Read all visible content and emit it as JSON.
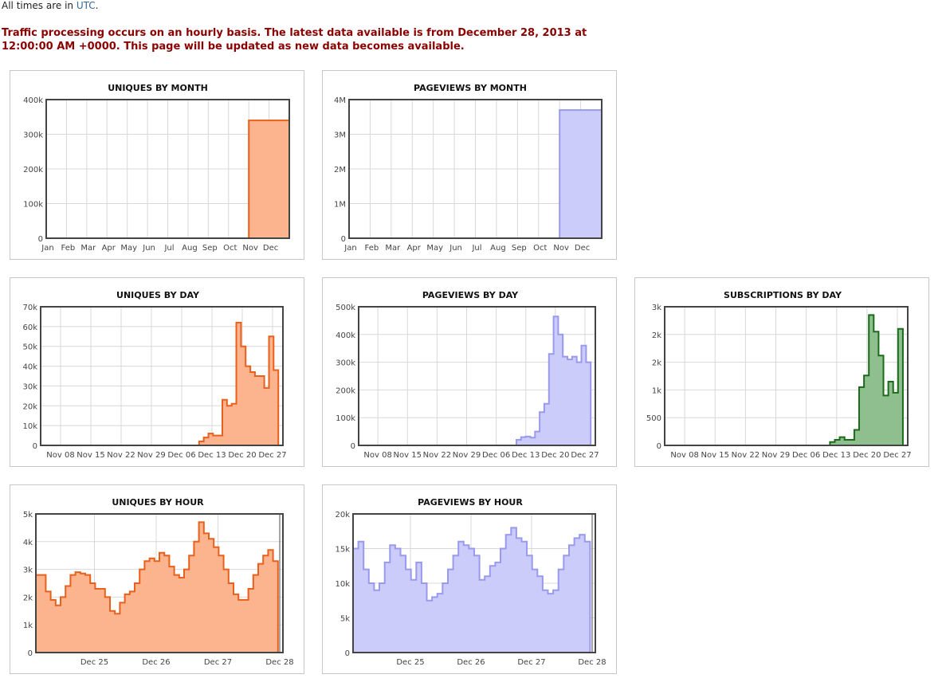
{
  "header": {
    "timezone_prefix": "All times are in ",
    "timezone_link": "UTC",
    "timezone_suffix": ".",
    "notice_line1": "Traffic processing occurs on an hourly basis. The latest data available is from December 28, 2013 at",
    "notice_line2": "12:00:00 AM +0000. This page will be updated as new data becomes available."
  },
  "colors": {
    "uniques_line": "#e8601c",
    "uniques_fill": "#fbb48e",
    "pageviews_line": "#9999ee",
    "pageviews_fill": "#ccccfa",
    "subs_line": "#1a6b1a",
    "subs_fill": "#8fbf8f"
  },
  "chart_data": [
    {
      "id": "uniques_month",
      "type": "area",
      "title": "UNIQUES BY MONTH",
      "color": "uniques",
      "categories": [
        "Jan",
        "Feb",
        "Mar",
        "Apr",
        "May",
        "Jun",
        "Jul",
        "Aug",
        "Sep",
        "Oct",
        "Nov",
        "Dec"
      ],
      "values": [
        0,
        0,
        0,
        0,
        0,
        0,
        0,
        0,
        0,
        0,
        340000,
        340000
      ],
      "ylim": [
        0,
        400000
      ],
      "yticks": [
        "0",
        "100k",
        "200k",
        "300k",
        "400k"
      ]
    },
    {
      "id": "pageviews_month",
      "type": "area",
      "title": "PAGEVIEWS BY MONTH",
      "color": "pageviews",
      "categories": [
        "Jan",
        "Feb",
        "Mar",
        "Apr",
        "May",
        "Jun",
        "Jul",
        "Aug",
        "Sep",
        "Oct",
        "Nov",
        "Dec"
      ],
      "values": [
        0,
        0,
        0,
        0,
        0,
        0,
        0,
        0,
        0,
        0,
        3700000,
        3700000
      ],
      "ylim": [
        0,
        4000000
      ],
      "yticks": [
        "0",
        "1M",
        "2M",
        "3M",
        "4M"
      ]
    },
    {
      "id": "uniques_day",
      "type": "area",
      "title": "UNIQUES BY DAY",
      "color": "uniques",
      "xticks": [
        "Nov 08",
        "Nov 15",
        "Nov 22",
        "Nov 29",
        "Dec 06",
        "Dec 13",
        "Dec 20",
        "Dec 27"
      ],
      "values": [
        0,
        0,
        0,
        0,
        0,
        0,
        0,
        0,
        0,
        0,
        0,
        0,
        0,
        0,
        0,
        0,
        0,
        0,
        0,
        0,
        0,
        0,
        0,
        0,
        0,
        0,
        0,
        0,
        0,
        0,
        0,
        0,
        0,
        0,
        2000,
        4000,
        6000,
        5000,
        5000,
        23000,
        20000,
        21000,
        62000,
        50000,
        40000,
        37000,
        35000,
        35000,
        29000,
        55000,
        38000,
        0
      ],
      "ylim": [
        0,
        70000
      ],
      "yticks": [
        "0",
        "10k",
        "20k",
        "30k",
        "40k",
        "50k",
        "60k",
        "70k"
      ]
    },
    {
      "id": "pageviews_day",
      "type": "area",
      "title": "PAGEVIEWS BY DAY",
      "color": "pageviews",
      "xticks": [
        "Nov 08",
        "Nov 15",
        "Nov 22",
        "Nov 29",
        "Dec 06",
        "Dec 13",
        "Dec 20",
        "Dec 27"
      ],
      "values": [
        0,
        0,
        0,
        0,
        0,
        0,
        0,
        0,
        0,
        0,
        0,
        0,
        0,
        0,
        0,
        0,
        0,
        0,
        0,
        0,
        0,
        0,
        0,
        0,
        0,
        0,
        0,
        0,
        0,
        0,
        0,
        0,
        0,
        0,
        20000,
        30000,
        32000,
        28000,
        50000,
        120000,
        150000,
        330000,
        465000,
        400000,
        320000,
        310000,
        320000,
        300000,
        360000,
        300000,
        0
      ],
      "ylim": [
        0,
        500000
      ],
      "yticks": [
        "0",
        "100k",
        "200k",
        "300k",
        "400k",
        "500k"
      ]
    },
    {
      "id": "subs_day",
      "type": "area",
      "title": "SUBSCRIPTIONS BY DAY",
      "color": "subs",
      "xticks": [
        "Nov 08",
        "Nov 15",
        "Nov 22",
        "Nov 29",
        "Dec 06",
        "Dec 13",
        "Dec 20",
        "Dec 27"
      ],
      "values": [
        0,
        0,
        0,
        0,
        0,
        0,
        0,
        0,
        0,
        0,
        0,
        0,
        0,
        0,
        0,
        0,
        0,
        0,
        0,
        0,
        0,
        0,
        0,
        0,
        0,
        0,
        0,
        0,
        0,
        0,
        0,
        0,
        0,
        0,
        60,
        100,
        150,
        100,
        100,
        280,
        1050,
        1260,
        2350,
        2050,
        1620,
        900,
        1150,
        950,
        2100,
        0
      ],
      "ylim": [
        0,
        2500
      ],
      "yticks": [
        "0",
        "500",
        "1k",
        "2k",
        "2k",
        "3k"
      ]
    },
    {
      "id": "uniques_hour",
      "type": "area",
      "title": "UNIQUES BY HOUR",
      "color": "uniques",
      "xticks": [
        "Dec 25",
        "Dec 26",
        "Dec 27",
        "Dec 28"
      ],
      "values": [
        2800,
        2800,
        2200,
        1900,
        1700,
        2000,
        2400,
        2800,
        2900,
        2850,
        2800,
        2500,
        2300,
        2300,
        2000,
        1500,
        1400,
        1800,
        2100,
        2200,
        2500,
        3000,
        3300,
        3400,
        3300,
        3600,
        3500,
        3100,
        2800,
        2700,
        3000,
        3500,
        4000,
        4700,
        4300,
        4100,
        3800,
        3500,
        3000,
        2500,
        2100,
        1900,
        1900,
        2300,
        2800,
        3200,
        3500,
        3700,
        3300,
        0
      ],
      "ylim": [
        0,
        5000
      ],
      "yticks": [
        "0",
        "1k",
        "2k",
        "3k",
        "4k",
        "5k"
      ]
    },
    {
      "id": "pageviews_hour",
      "type": "area",
      "title": "PAGEVIEWS BY HOUR",
      "color": "pageviews",
      "xticks": [
        "Dec 25",
        "Dec 26",
        "Dec 27",
        "Dec 28"
      ],
      "values": [
        15000,
        16000,
        12000,
        10000,
        9000,
        10000,
        13000,
        15500,
        15000,
        14000,
        12000,
        10500,
        13000,
        10000,
        7500,
        8000,
        8500,
        10000,
        12000,
        14000,
        16000,
        15500,
        15000,
        14000,
        10500,
        11000,
        12500,
        13000,
        15000,
        17000,
        18000,
        16500,
        16000,
        14000,
        12000,
        11000,
        9000,
        8500,
        9000,
        12000,
        14000,
        15500,
        16500,
        17000,
        16000,
        0
      ],
      "ylim": [
        0,
        20000
      ],
      "yticks": [
        "0",
        "5k",
        "10k",
        "15k",
        "20k"
      ]
    }
  ]
}
